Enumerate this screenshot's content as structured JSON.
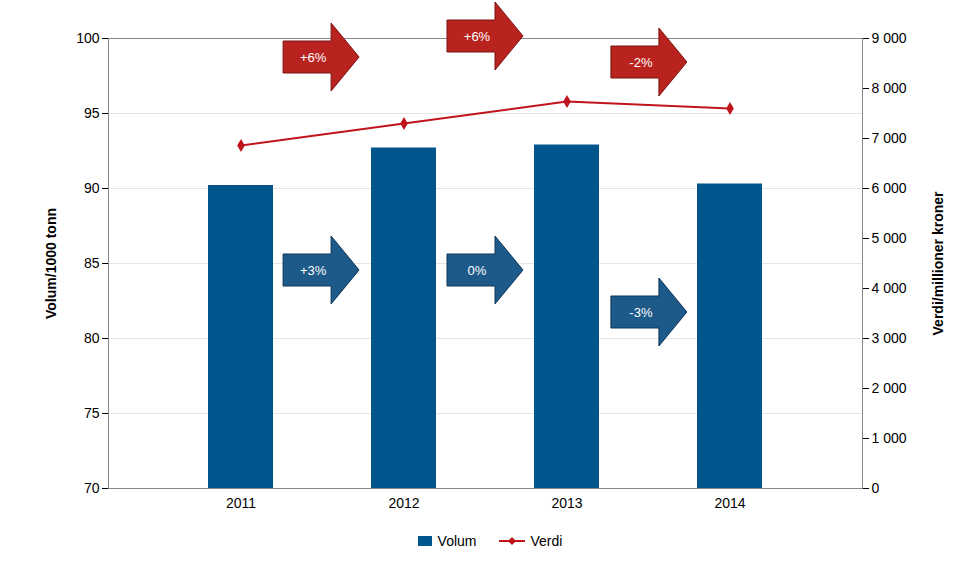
{
  "chart_data": {
    "type": "bar",
    "categories": [
      "2011",
      "2012",
      "2013",
      "2014"
    ],
    "ylabel": "Volum/1000 tonn",
    "y2label": "Verdi/millioner kroner",
    "ylim": [
      70,
      100
    ],
    "yticks": [
      70,
      75,
      80,
      85,
      90,
      95,
      100
    ],
    "y2lim": [
      0,
      9000
    ],
    "y2ticks": [
      0,
      {
        "value": 1000,
        "label": "1 000"
      },
      {
        "value": 2000,
        "label": "2 000"
      },
      {
        "value": 3000,
        "label": "3 000"
      },
      {
        "value": 4000,
        "label": "4 000"
      },
      {
        "value": 5000,
        "label": "5 000"
      },
      {
        "value": 6000,
        "label": "6 000"
      },
      {
        "value": 7000,
        "label": "7 000"
      },
      {
        "value": 8000,
        "label": "8 000"
      },
      {
        "value": 9000,
        "label": "9 000"
      }
    ],
    "grid": true,
    "legend": "bottom",
    "series": [
      {
        "name": "Volum",
        "type": "bar",
        "color": "#00568c",
        "values": [
          90.2,
          92.7,
          92.9,
          90.3
        ],
        "change_labels": [
          "+3%",
          "0%",
          "-3%"
        ]
      },
      {
        "name": "Verdi",
        "type": "line",
        "axis": "y2",
        "color": "#c0141c",
        "marker": "diamond",
        "values": [
          6860,
          7300,
          7740,
          7600
        ],
        "change_labels": [
          "+6%",
          "+6%",
          "-2%"
        ]
      }
    ]
  }
}
